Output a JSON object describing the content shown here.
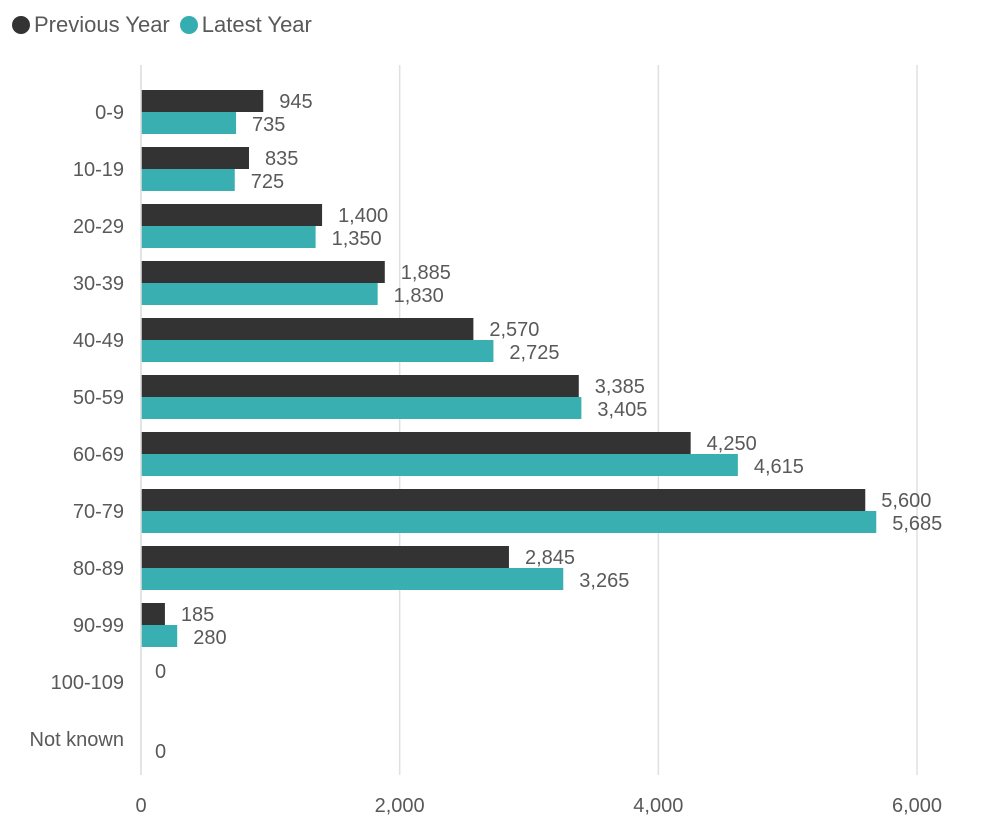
{
  "legend": {
    "items": [
      {
        "label": "Previous Year",
        "color": "#333333"
      },
      {
        "label": "Latest Year",
        "color": "#36adb0"
      }
    ]
  },
  "chart_data": {
    "type": "bar",
    "orientation": "horizontal",
    "categories": [
      "0-9",
      "10-19",
      "20-29",
      "30-39",
      "40-49",
      "50-59",
      "60-69",
      "70-79",
      "80-89",
      "90-99",
      "100-109",
      "Not known"
    ],
    "series": [
      {
        "name": "Previous Year",
        "color": "#333333",
        "values": [
          945,
          835,
          1400,
          1885,
          2570,
          3385,
          4250,
          5600,
          2845,
          185,
          0,
          0
        ]
      },
      {
        "name": "Latest Year",
        "color": "#36adb0",
        "values": [
          735,
          725,
          1350,
          1830,
          2725,
          3405,
          4615,
          5685,
          3265,
          280,
          null,
          0
        ]
      }
    ],
    "data_labels": {
      "Previous Year": [
        "945",
        "835",
        "1,400",
        "1,885",
        "2,570",
        "3,385",
        "4,250",
        "5,600",
        "2,845",
        "185",
        "0",
        ""
      ],
      "Latest Year": [
        "735",
        "725",
        "1,350",
        "1,830",
        "2,725",
        "3,405",
        "4,615",
        "5,685",
        "3,265",
        "280",
        "",
        "0"
      ]
    },
    "xticks": [
      0,
      2000,
      4000,
      6000
    ],
    "xtick_labels": [
      "0",
      "2,000",
      "4,000",
      "6,000"
    ],
    "xlim": [
      0,
      6000
    ],
    "grid": "vertical",
    "legend_position": "top-left",
    "title": "",
    "xlabel": "",
    "ylabel": ""
  }
}
